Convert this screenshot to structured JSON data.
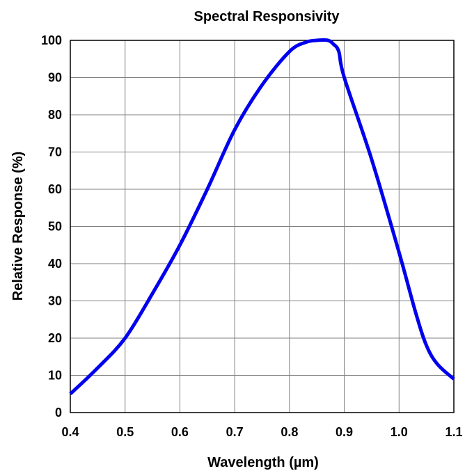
{
  "chart_data": {
    "type": "line",
    "title": "Spectral Responsivity",
    "xlabel": "Wavelength (µm)",
    "ylabel": "Relative Response (%)",
    "xlim": [
      0.4,
      1.1
    ],
    "ylim": [
      0,
      100
    ],
    "x_ticks": [
      "0.4",
      "0.5",
      "0.6",
      "0.7",
      "0.8",
      "0.9",
      "1.0",
      "1.1"
    ],
    "y_ticks": [
      "0",
      "10",
      "20",
      "30",
      "40",
      "50",
      "60",
      "70",
      "80",
      "90",
      "100"
    ],
    "grid": true,
    "line_color": "#0000ee",
    "series": [
      {
        "x": [
          0.4,
          0.45,
          0.5,
          0.55,
          0.6,
          0.65,
          0.7,
          0.75,
          0.8,
          0.83,
          0.85,
          0.87,
          0.88,
          0.89,
          0.9,
          0.95,
          1.0,
          1.03,
          1.05,
          1.07,
          1.1
        ],
        "y": [
          5,
          12,
          20,
          32,
          45,
          60,
          76,
          88,
          97,
          99.5,
          100,
          100,
          99,
          97,
          90,
          68,
          43,
          27,
          18,
          13,
          9
        ]
      }
    ]
  }
}
